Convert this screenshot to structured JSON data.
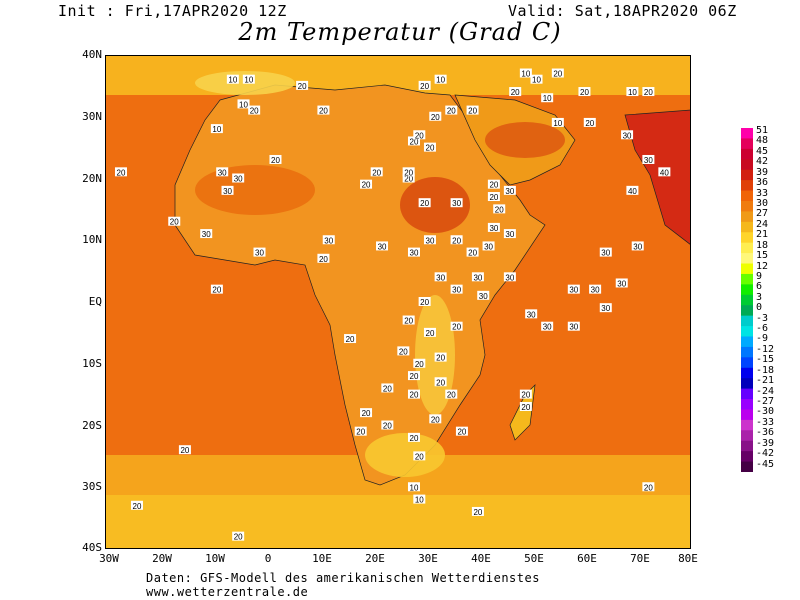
{
  "header": {
    "init": "Init : Fri,17APR2020 12Z",
    "valid": "Valid: Sat,18APR2020 06Z",
    "title": "2m Temperatur (Grad C)"
  },
  "map": {
    "lat_labels": [
      "40N",
      "30N",
      "20N",
      "10N",
      "EQ",
      "10S",
      "20S",
      "30S",
      "40S"
    ],
    "lon_labels": [
      "30W",
      "20W",
      "10W",
      "0",
      "10E",
      "20E",
      "30E",
      "40E",
      "50E",
      "60E",
      "70E",
      "80E"
    ],
    "extent": {
      "lon": [
        -30,
        80
      ],
      "lat": [
        -40,
        40
      ]
    },
    "ocean_color": "#f07010",
    "land_color": "#f09a18"
  },
  "colorbar": {
    "labels": [
      "51",
      "48",
      "45",
      "42",
      "39",
      "36",
      "33",
      "30",
      "27",
      "24",
      "21",
      "18",
      "15",
      "12",
      "9",
      "6",
      "3",
      "0",
      "-3",
      "-6",
      "-9",
      "-12",
      "-15",
      "-18",
      "-21",
      "-24",
      "-27",
      "-30",
      "-33",
      "-36",
      "-39",
      "-42",
      "-45"
    ],
    "colors": [
      "#ff00aa",
      "#e4005a",
      "#cc0030",
      "#c80a20",
      "#d22010",
      "#e04008",
      "#f06408",
      "#f07c10",
      "#f09a18",
      "#f5b81c",
      "#ffd52a",
      "#ffee50",
      "#fff87a",
      "#eeff00",
      "#66ff00",
      "#11ee00",
      "#00cc33",
      "#00aa55",
      "#00cccc",
      "#00e4e4",
      "#00aaff",
      "#0077ff",
      "#0044ff",
      "#0000ee",
      "#0000bb",
      "#6600ff",
      "#9900ff",
      "#bb00ee",
      "#cc33cc",
      "#aa22aa",
      "#881188",
      "#660066",
      "#440044"
    ]
  },
  "isotherm_labels": [
    {
      "text": "20",
      "lon": -27,
      "lat": 21
    },
    {
      "text": "20",
      "lon": -15,
      "lat": -24
    },
    {
      "text": "20",
      "lon": -24,
      "lat": -33
    },
    {
      "text": "20",
      "lon": -5,
      "lat": -38
    },
    {
      "text": "20",
      "lon": -9,
      "lat": 2
    },
    {
      "text": "10",
      "lon": -6,
      "lat": 36
    },
    {
      "text": "10",
      "lon": -3,
      "lat": 36
    },
    {
      "text": "10",
      "lon": -4,
      "lat": 32
    },
    {
      "text": "20",
      "lon": -2,
      "lat": 31
    },
    {
      "text": "10",
      "lon": -9,
      "lat": 28
    },
    {
      "text": "20",
      "lon": 7,
      "lat": 35
    },
    {
      "text": "20",
      "lon": 11,
      "lat": 31
    },
    {
      "text": "20",
      "lon": 2,
      "lat": 23
    },
    {
      "text": "30",
      "lon": -8,
      "lat": 21
    },
    {
      "text": "30",
      "lon": -5,
      "lat": 20
    },
    {
      "text": "30",
      "lon": -7,
      "lat": 18
    },
    {
      "text": "20",
      "lon": -17,
      "lat": 13
    },
    {
      "text": "30",
      "lon": -11,
      "lat": 11
    },
    {
      "text": "30",
      "lon": -1,
      "lat": 8
    },
    {
      "text": "20",
      "lon": 21,
      "lat": 21
    },
    {
      "text": "20",
      "lon": 19,
      "lat": 19
    },
    {
      "text": "20",
      "lon": 27,
      "lat": 20
    },
    {
      "text": "20",
      "lon": 27,
      "lat": 21
    },
    {
      "text": "20",
      "lon": 28,
      "lat": 26
    },
    {
      "text": "20",
      "lon": 29,
      "lat": 27
    },
    {
      "text": "20",
      "lon": 31,
      "lat": 25
    },
    {
      "text": "20",
      "lon": 32,
      "lat": 30
    },
    {
      "text": "10",
      "lon": 33,
      "lat": 36
    },
    {
      "text": "20",
      "lon": 30,
      "lat": 35
    },
    {
      "text": "20",
      "lon": 35,
      "lat": 31
    },
    {
      "text": "20",
      "lon": 39,
      "lat": 31
    },
    {
      "text": "10",
      "lon": 49,
      "lat": 37
    },
    {
      "text": "10",
      "lon": 51,
      "lat": 36
    },
    {
      "text": "20",
      "lon": 55,
      "lat": 37
    },
    {
      "text": "10",
      "lon": 53,
      "lat": 33
    },
    {
      "text": "20",
      "lon": 47,
      "lat": 34
    },
    {
      "text": "10",
      "lon": 55,
      "lat": 29
    },
    {
      "text": "20",
      "lon": 61,
      "lat": 29
    },
    {
      "text": "30",
      "lon": 68,
      "lat": 27
    },
    {
      "text": "20",
      "lon": 60,
      "lat": 34
    },
    {
      "text": "10",
      "lon": 69,
      "lat": 34
    },
    {
      "text": "20",
      "lon": 72,
      "lat": 34
    },
    {
      "text": "30",
      "lon": 72,
      "lat": 23
    },
    {
      "text": "40",
      "lon": 75,
      "lat": 21
    },
    {
      "text": "40",
      "lon": 69,
      "lat": 18
    },
    {
      "text": "30",
      "lon": 36,
      "lat": 16
    },
    {
      "text": "20",
      "lon": 30,
      "lat": 16
    },
    {
      "text": "20",
      "lon": 43,
      "lat": 19
    },
    {
      "text": "20",
      "lon": 43,
      "lat": 17
    },
    {
      "text": "20",
      "lon": 44,
      "lat": 15
    },
    {
      "text": "30",
      "lon": 43,
      "lat": 12
    },
    {
      "text": "30",
      "lon": 46,
      "lat": 11
    },
    {
      "text": "30",
      "lon": 46,
      "lat": 18
    },
    {
      "text": "30",
      "lon": 31,
      "lat": 10
    },
    {
      "text": "20",
      "lon": 36,
      "lat": 10
    },
    {
      "text": "30",
      "lon": 42,
      "lat": 9
    },
    {
      "text": "20",
      "lon": 39,
      "lat": 8
    },
    {
      "text": "30",
      "lon": 12,
      "lat": 10
    },
    {
      "text": "20",
      "lon": 11,
      "lat": 7
    },
    {
      "text": "30",
      "lon": 22,
      "lat": 9
    },
    {
      "text": "30",
      "lon": 28,
      "lat": 8
    },
    {
      "text": "30",
      "lon": 33,
      "lat": 4
    },
    {
      "text": "30",
      "lon": 36,
      "lat": 2
    },
    {
      "text": "30",
      "lon": 41,
      "lat": 1
    },
    {
      "text": "30",
      "lon": 46,
      "lat": 4
    },
    {
      "text": "30",
      "lon": 40,
      "lat": 4
    },
    {
      "text": "30",
      "lon": 64,
      "lat": 8
    },
    {
      "text": "30",
      "lon": 70,
      "lat": 9
    },
    {
      "text": "30",
      "lon": 67,
      "lat": 3
    },
    {
      "text": "30",
      "lon": 62,
      "lat": 2
    },
    {
      "text": "30",
      "lon": 58,
      "lat": 2
    },
    {
      "text": "30",
      "lon": 50,
      "lat": -2
    },
    {
      "text": "30",
      "lon": 53,
      "lat": -4
    },
    {
      "text": "30",
      "lon": 58,
      "lat": -4
    },
    {
      "text": "30",
      "lon": 64,
      "lat": -1
    },
    {
      "text": "20",
      "lon": 30,
      "lat": 0
    },
    {
      "text": "20",
      "lon": 27,
      "lat": -3
    },
    {
      "text": "20",
      "lon": 31,
      "lat": -5
    },
    {
      "text": "20",
      "lon": 36,
      "lat": -4
    },
    {
      "text": "20",
      "lon": 26,
      "lat": -8
    },
    {
      "text": "20",
      "lon": 29,
      "lat": -10
    },
    {
      "text": "20",
      "lon": 33,
      "lat": -9
    },
    {
      "text": "20",
      "lon": 28,
      "lat": -12
    },
    {
      "text": "20",
      "lon": 33,
      "lat": -13
    },
    {
      "text": "20",
      "lon": 35,
      "lat": -15
    },
    {
      "text": "20",
      "lon": 28,
      "lat": -15
    },
    {
      "text": "20",
      "lon": 23,
      "lat": -14
    },
    {
      "text": "20",
      "lon": 16,
      "lat": -6
    },
    {
      "text": "20",
      "lon": 32,
      "lat": -19
    },
    {
      "text": "20",
      "lon": 28,
      "lat": -22
    },
    {
      "text": "20",
      "lon": 37,
      "lat": -21
    },
    {
      "text": "20",
      "lon": 23,
      "lat": -20
    },
    {
      "text": "20",
      "lon": 18,
      "lat": -21
    },
    {
      "text": "20",
      "lon": 19,
      "lat": -18
    },
    {
      "text": "20",
      "lon": 49,
      "lat": -17
    },
    {
      "text": "20",
      "lon": 49,
      "lat": -15
    },
    {
      "text": "20",
      "lon": 29,
      "lat": -25
    },
    {
      "text": "10",
      "lon": 29,
      "lat": -32
    },
    {
      "text": "10",
      "lon": 28,
      "lat": -30
    },
    {
      "text": "20",
      "lon": 40,
      "lat": -34
    },
    {
      "text": "20",
      "lon": 72,
      "lat": -30
    }
  ],
  "footer": {
    "line1": "Daten: GFS-Modell des amerikanischen Wetterdienstes",
    "line2": "www.wetterzentrale.de"
  }
}
